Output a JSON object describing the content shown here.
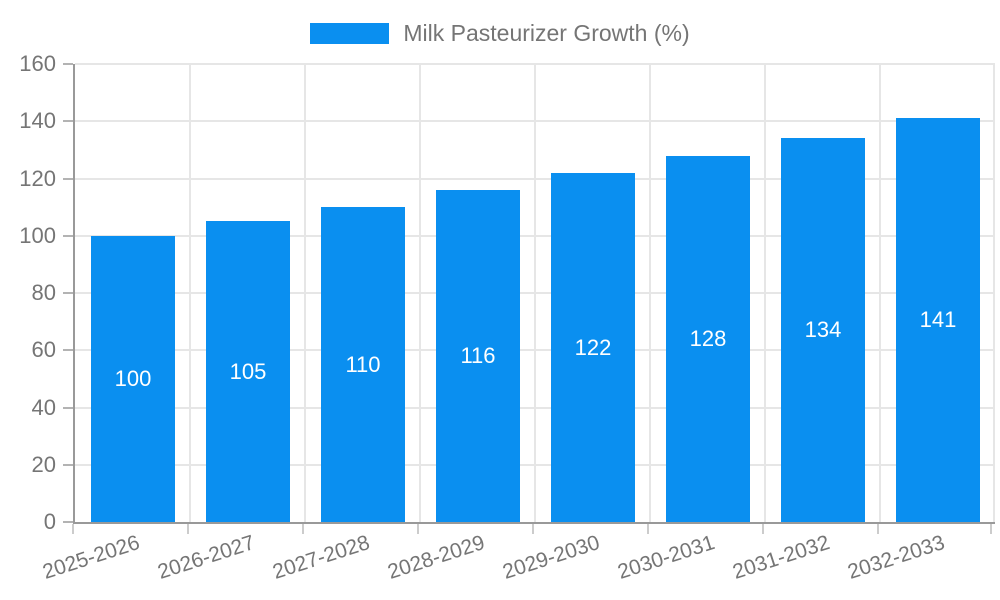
{
  "legend": {
    "label": "Milk Pasteurizer Growth (%)"
  },
  "chart_data": {
    "type": "bar",
    "title": "Milk Pasteurizer Growth (%)",
    "categories": [
      "2025-2026",
      "2026-2027",
      "2027-2028",
      "2028-2029",
      "2029-2030",
      "2030-2031",
      "2031-2032",
      "2032-2033"
    ],
    "values": [
      100,
      105,
      110,
      116,
      122,
      128,
      134,
      141
    ],
    "xlabel": "",
    "ylabel": "",
    "ylim": [
      0,
      160
    ],
    "yticks": [
      0,
      20,
      40,
      60,
      80,
      100,
      120,
      140,
      160
    ],
    "grid": true,
    "legend_position": "top",
    "value_labels": "inside-center",
    "x_label_rotation_deg": -18,
    "colors": {
      "bar": "#0a8ff0",
      "text": "#757575",
      "grid": "#e6e6e6",
      "axis": "#999999",
      "x_tick": "#cccccc",
      "y_tick": "#b3b3b3",
      "value_text": "#ffffff",
      "background": "#ffffff"
    }
  }
}
